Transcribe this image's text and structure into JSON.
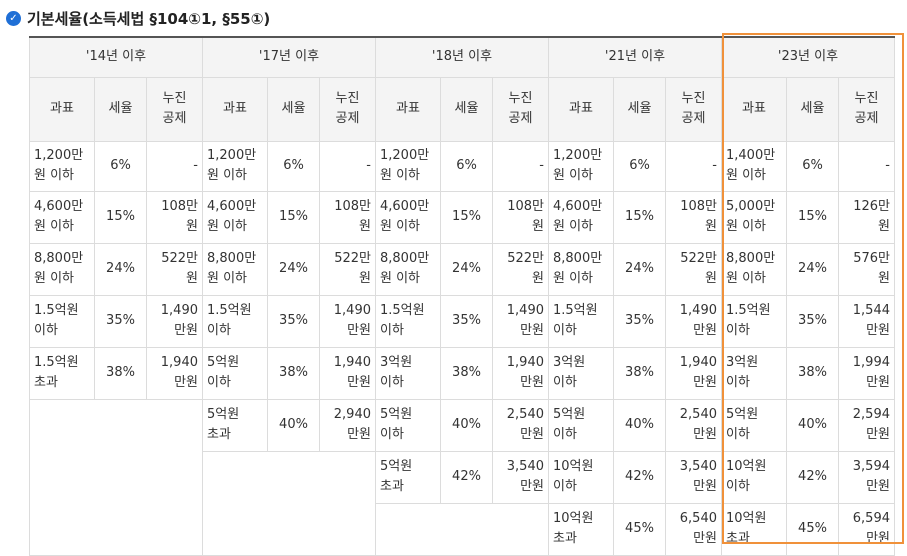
{
  "section": {
    "title": "기본세율(소득세법 §104①1, §55①)",
    "icon": "check-circle-icon",
    "icon_color": "#1f6fd6"
  },
  "table": {
    "periods": [
      "'14년 이후",
      "'17년 이후",
      "'18년 이후",
      "'21년 이후",
      "'23년 이후"
    ],
    "sub_headers": [
      "과표",
      "세율",
      "누진\n공제"
    ],
    "highlight_color": "#f0913a",
    "rows": [
      [
        [
          "1,200만\n원 이하",
          "6%",
          "-"
        ],
        [
          "1,200만\n원 이하",
          "6%",
          "-"
        ],
        [
          "1,200만\n원 이하",
          "6%",
          "-"
        ],
        [
          "1,200만\n원 이하",
          "6%",
          "-"
        ],
        [
          "1,400만\n원 이하",
          "6%",
          "-"
        ]
      ],
      [
        [
          "4,600만\n원 이하",
          "15%",
          "108만\n원"
        ],
        [
          "4,600만\n원 이하",
          "15%",
          "108만\n원"
        ],
        [
          "4,600만\n원 이하",
          "15%",
          "108만\n원"
        ],
        [
          "4,600만\n원 이하",
          "15%",
          "108만\n원"
        ],
        [
          "5,000만\n원 이하",
          "15%",
          "126만\n원"
        ]
      ],
      [
        [
          "8,800만\n원 이하",
          "24%",
          "522만\n원"
        ],
        [
          "8,800만\n원 이하",
          "24%",
          "522만\n원"
        ],
        [
          "8,800만\n원 이하",
          "24%",
          "522만\n원"
        ],
        [
          "8,800만\n원 이하",
          "24%",
          "522만\n원"
        ],
        [
          "8,800만\n원 이하",
          "24%",
          "576만\n원"
        ]
      ],
      [
        [
          "1.5억원\n이하",
          "35%",
          "1,490\n만원"
        ],
        [
          "1.5억원\n이하",
          "35%",
          "1,490\n만원"
        ],
        [
          "1.5억원\n이하",
          "35%",
          "1,490\n만원"
        ],
        [
          "1.5억원\n이하",
          "35%",
          "1,490\n만원"
        ],
        [
          "1.5억원\n이하",
          "35%",
          "1,544\n만원"
        ]
      ],
      [
        [
          "1.5억원\n초과",
          "38%",
          "1,940\n만원"
        ],
        [
          "5억원\n이하",
          "38%",
          "1,940\n만원"
        ],
        [
          "3억원\n이하",
          "38%",
          "1,940\n만원"
        ],
        [
          "3억원\n이하",
          "38%",
          "1,940\n만원"
        ],
        [
          "3억원\n이하",
          "38%",
          "1,994\n만원"
        ]
      ],
      [
        null,
        [
          "5억원\n초과",
          "40%",
          "2,940\n만원"
        ],
        [
          "5억원\n이하",
          "40%",
          "2,540\n만원"
        ],
        [
          "5억원\n이하",
          "40%",
          "2,540\n만원"
        ],
        [
          "5억원\n이하",
          "40%",
          "2,594\n만원"
        ]
      ],
      [
        null,
        null,
        [
          "5억원\n초과",
          "42%",
          "3,540\n만원"
        ],
        [
          "10억원\n이하",
          "42%",
          "3,540\n만원"
        ],
        [
          "10억원\n이하",
          "42%",
          "3,594\n만원"
        ]
      ],
      [
        null,
        null,
        null,
        [
          "10억원\n초과",
          "45%",
          "6,540\n만원"
        ],
        [
          "10억원\n초과",
          "45%",
          "6,594\n만원"
        ]
      ]
    ]
  }
}
